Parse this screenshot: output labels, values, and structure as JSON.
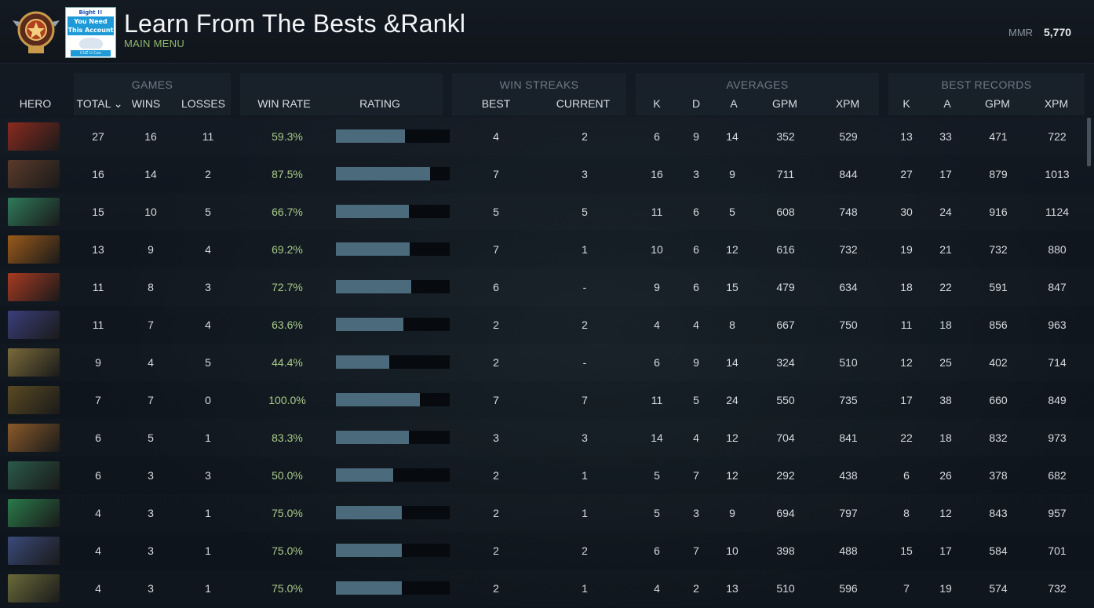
{
  "header": {
    "title": "Learn From The Bests &Rankl",
    "subtitle": "MAIN MENU",
    "mmr_label": "MMR",
    "mmr_value": "5,770",
    "promo": {
      "line1": "Bight !!",
      "line2": "You Need This Account",
      "line3": "CUZ U Can"
    }
  },
  "groups": {
    "games": "GAMES",
    "win_streaks": "WIN STREAKS",
    "averages": "AVERAGES",
    "best_records": "BEST RECORDS"
  },
  "columns": {
    "hero": "HERO",
    "total": "TOTAL ⌄",
    "wins": "WINS",
    "losses": "LOSSES",
    "win_rate": "WIN RATE",
    "rating": "RATING",
    "best": "BEST",
    "current": "CURRENT",
    "avg_k": "K",
    "avg_d": "D",
    "avg_a": "A",
    "avg_gpm": "GPM",
    "avg_xpm": "XPM",
    "best_k": "K",
    "best_a": "A",
    "best_gpm": "GPM",
    "best_xpm": "XPM"
  },
  "rows": [
    {
      "hero_color": "#8a2a1e",
      "total": "27",
      "wins": "16",
      "losses": "11",
      "win_rate": "59.3%",
      "rating": 0.61,
      "best": "4",
      "current": "2",
      "k": "6",
      "d": "9",
      "a": "14",
      "gpm": "352",
      "xpm": "529",
      "bk": "13",
      "ba": "33",
      "bgpm": "471",
      "bxpm": "722"
    },
    {
      "hero_color": "#5a3a2a",
      "total": "16",
      "wins": "14",
      "losses": "2",
      "win_rate": "87.5%",
      "rating": 0.83,
      "best": "7",
      "current": "3",
      "k": "16",
      "d": "3",
      "a": "9",
      "gpm": "711",
      "xpm": "844",
      "bk": "27",
      "ba": "17",
      "bgpm": "879",
      "bxpm": "1013"
    },
    {
      "hero_color": "#2e7a5a",
      "total": "15",
      "wins": "10",
      "losses": "5",
      "win_rate": "66.7%",
      "rating": 0.64,
      "best": "5",
      "current": "5",
      "k": "11",
      "d": "6",
      "a": "5",
      "gpm": "608",
      "xpm": "748",
      "bk": "30",
      "ba": "24",
      "bgpm": "916",
      "bxpm": "1124"
    },
    {
      "hero_color": "#9a5a1a",
      "total": "13",
      "wins": "9",
      "losses": "4",
      "win_rate": "69.2%",
      "rating": 0.65,
      "best": "7",
      "current": "1",
      "k": "10",
      "d": "6",
      "a": "12",
      "gpm": "616",
      "xpm": "732",
      "bk": "19",
      "ba": "21",
      "bgpm": "732",
      "bxpm": "880"
    },
    {
      "hero_color": "#a83a22",
      "total": "11",
      "wins": "8",
      "losses": "3",
      "win_rate": "72.7%",
      "rating": 0.66,
      "best": "6",
      "current": "-",
      "k": "9",
      "d": "6",
      "a": "15",
      "gpm": "479",
      "xpm": "634",
      "bk": "18",
      "ba": "22",
      "bgpm": "591",
      "bxpm": "847"
    },
    {
      "hero_color": "#3a3f7a",
      "total": "11",
      "wins": "7",
      "losses": "4",
      "win_rate": "63.6%",
      "rating": 0.59,
      "best": "2",
      "current": "2",
      "k": "4",
      "d": "4",
      "a": "8",
      "gpm": "667",
      "xpm": "750",
      "bk": "11",
      "ba": "18",
      "bgpm": "856",
      "bxpm": "963"
    },
    {
      "hero_color": "#7a6a3a",
      "total": "9",
      "wins": "4",
      "losses": "5",
      "win_rate": "44.4%",
      "rating": 0.47,
      "best": "2",
      "current": "-",
      "k": "6",
      "d": "9",
      "a": "14",
      "gpm": "324",
      "xpm": "510",
      "bk": "12",
      "ba": "25",
      "bgpm": "402",
      "bxpm": "714"
    },
    {
      "hero_color": "#5a4a22",
      "total": "7",
      "wins": "7",
      "losses": "0",
      "win_rate": "100.0%",
      "rating": 0.74,
      "best": "7",
      "current": "7",
      "k": "11",
      "d": "5",
      "a": "24",
      "gpm": "550",
      "xpm": "735",
      "bk": "17",
      "ba": "38",
      "bgpm": "660",
      "bxpm": "849"
    },
    {
      "hero_color": "#8a5a2a",
      "total": "6",
      "wins": "5",
      "losses": "1",
      "win_rate": "83.3%",
      "rating": 0.64,
      "best": "3",
      "current": "3",
      "k": "14",
      "d": "4",
      "a": "12",
      "gpm": "704",
      "xpm": "841",
      "bk": "22",
      "ba": "18",
      "bgpm": "832",
      "bxpm": "973"
    },
    {
      "hero_color": "#2a5a4a",
      "total": "6",
      "wins": "3",
      "losses": "3",
      "win_rate": "50.0%",
      "rating": 0.5,
      "best": "2",
      "current": "1",
      "k": "5",
      "d": "7",
      "a": "12",
      "gpm": "292",
      "xpm": "438",
      "bk": "6",
      "ba": "26",
      "bgpm": "378",
      "bxpm": "682"
    },
    {
      "hero_color": "#2a7a4a",
      "total": "4",
      "wins": "3",
      "losses": "1",
      "win_rate": "75.0%",
      "rating": 0.58,
      "best": "2",
      "current": "1",
      "k": "5",
      "d": "3",
      "a": "9",
      "gpm": "694",
      "xpm": "797",
      "bk": "8",
      "ba": "12",
      "bgpm": "843",
      "bxpm": "957"
    },
    {
      "hero_color": "#3a4a7a",
      "total": "4",
      "wins": "3",
      "losses": "1",
      "win_rate": "75.0%",
      "rating": 0.58,
      "best": "2",
      "current": "2",
      "k": "6",
      "d": "7",
      "a": "10",
      "gpm": "398",
      "xpm": "488",
      "bk": "15",
      "ba": "17",
      "bgpm": "584",
      "bxpm": "701"
    },
    {
      "hero_color": "#6a6a3a",
      "total": "4",
      "wins": "3",
      "losses": "1",
      "win_rate": "75.0%",
      "rating": 0.58,
      "best": "2",
      "current": "1",
      "k": "4",
      "d": "2",
      "a": "13",
      "gpm": "510",
      "xpm": "596",
      "bk": "7",
      "ba": "19",
      "bgpm": "574",
      "bxpm": "732"
    }
  ]
}
